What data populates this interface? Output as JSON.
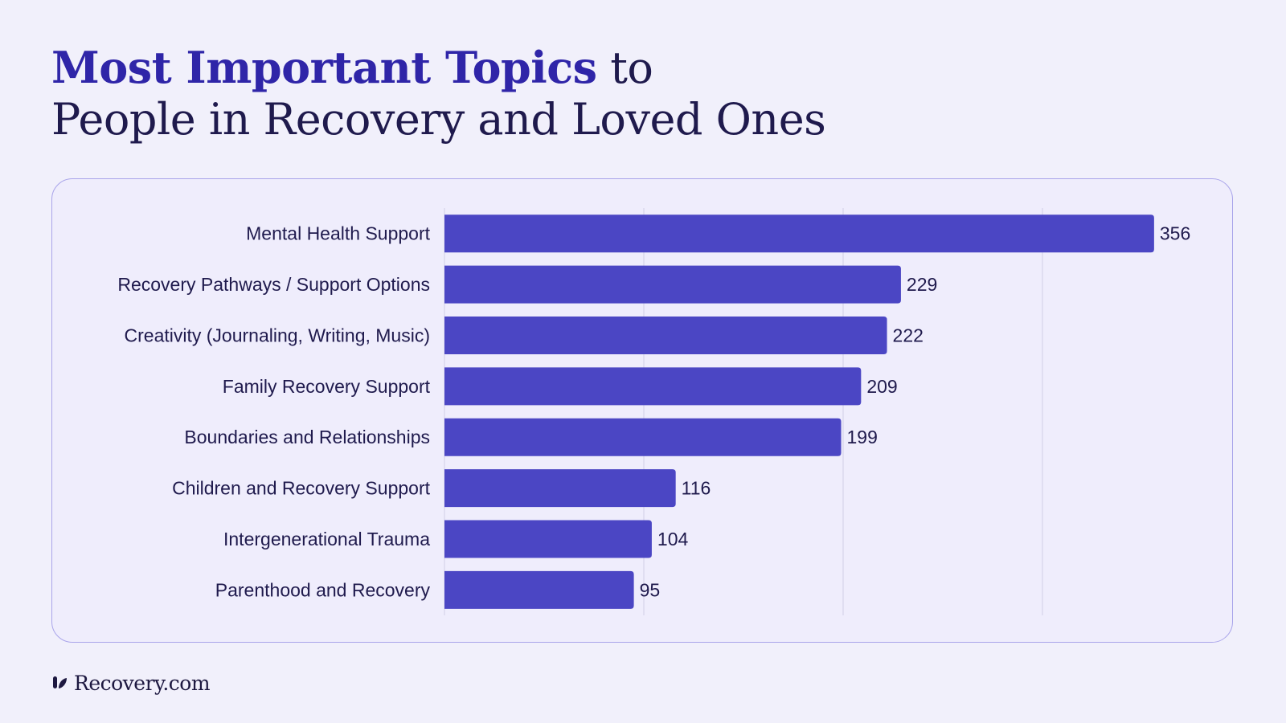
{
  "header": {
    "title_highlight": "Most Important Topics",
    "title_rest_line1": " to",
    "title_line2": "People in Recovery and Loved Ones"
  },
  "chart_data": {
    "type": "bar",
    "orientation": "horizontal",
    "categories": [
      "Mental Health Support",
      "Recovery Pathways / Support Options",
      "Creativity (Journaling, Writing, Music)",
      "Family Recovery Support",
      "Boundaries and Relationships",
      "Children and Recovery Support",
      "Intergenerational Trauma",
      "Parenthood and Recovery"
    ],
    "values": [
      356,
      229,
      222,
      209,
      199,
      116,
      104,
      95
    ],
    "xlim": [
      0,
      400
    ],
    "gridlines": [
      100,
      200,
      300
    ],
    "grid": true,
    "colors": {
      "bar": "#4b46c4",
      "grid": "#d2d0e6",
      "label": "#1f1a4d"
    }
  },
  "footer": {
    "brand": "Recovery.com"
  }
}
